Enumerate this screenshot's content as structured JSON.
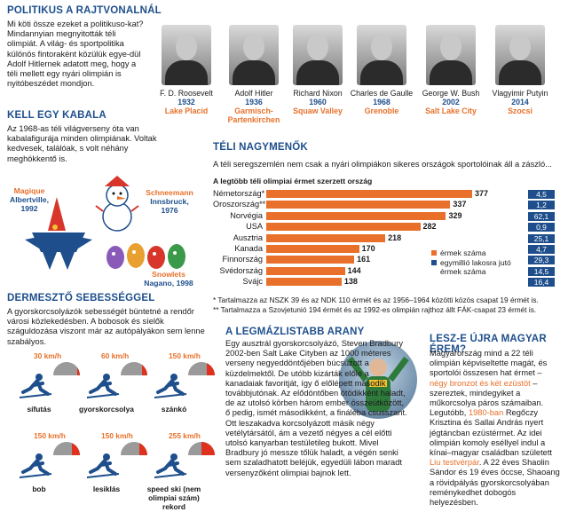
{
  "politics": {
    "title": "POLITIKUS A RAJTVONALNÁL",
    "text": "Mi köti össze ezeket a politikuso-kat? Mindannyian megnyitották téli olimpiát. A világ- és sportpolitika különös fintoraként közülük egye-dül Adolf Hitlernek adatott meg, hogy a téli mellett egy nyári olimpián is nyitóbeszédet mondjon.",
    "leaders": [
      {
        "name": "F. D. Roosevelt",
        "year": "1932",
        "city": "Lake Placid"
      },
      {
        "name": "Adolf Hitler",
        "year": "1936",
        "city": "Garmisch-Partenkirchen"
      },
      {
        "name": "Richard Nixon",
        "year": "1960",
        "city": "Squaw Valley"
      },
      {
        "name": "Charles de Gaulle",
        "year": "1968",
        "city": "Grenoble"
      },
      {
        "name": "George W. Bush",
        "year": "2002",
        "city": "Salt Lake City"
      },
      {
        "name": "Vlagyimir Putyin",
        "year": "2014",
        "city": "Szocsi"
      }
    ]
  },
  "mascot": {
    "title": "KELL EGY KABALA",
    "text": "Az 1968-as téli világverseny óta van kabalafigurája minden olimpiának. Voltak kedvesek, találóak, s volt néhány meghökkentő is.",
    "items": [
      {
        "name": "Magique",
        "city": "Albertville,",
        "year": "1992"
      },
      {
        "name": "Schneemann",
        "city": "Innsbruck,",
        "year": "1976"
      },
      {
        "name": "Snowlets",
        "city": "Nagano, 1998",
        "year": ""
      }
    ]
  },
  "winter": {
    "title": "TÉLI NAGYMENŐK",
    "intro": "A téli seregszemlén nem csak a nyári olimpiákon sikeres országok sportolóinak áll a zászló...",
    "chart_title": "A legtöbb téli olimpiai érmet szerzett ország",
    "legend_medals": "érmek száma",
    "legend_pop": "egymillió lakosra jutó érmek száma",
    "note1": "* Tartalmazza az NSZK 39 és az NDK 110 érmét és az 1956–1964 közötti közös csapat 19 érmét is.",
    "note2": "** Tartalmazza a Szovjetunió 194 érmét és az 1992-es olimpián rajthoz állt FÁK-csapat 23 érmét is."
  },
  "chart_data": {
    "type": "bar",
    "title": "A legtöbb téli olimpiai érmet szerzett ország",
    "categories": [
      "Németország*",
      "Oroszország**",
      "Norvégia",
      "USA",
      "Ausztria",
      "Kanada",
      "Finnország",
      "Svédország",
      "Svájc"
    ],
    "series": [
      {
        "name": "érmek száma",
        "values": [
          377,
          337,
          329,
          282,
          218,
          170,
          161,
          144,
          138
        ]
      },
      {
        "name": "egymillió lakosra jutó érmek száma",
        "values": [
          "4,5",
          "1,2",
          "62,1",
          "0,9",
          "25,1",
          "4,7",
          "29,3",
          "14,5",
          "16,4"
        ]
      }
    ]
  },
  "speed": {
    "title": "DERMESZTŐ SEBESSÉGGEL",
    "text": "A gyorskorcsolyázók sebességét büntetné a rendőr városi közlekedésben. A bobosok és síelők száguldozása viszont már az autópályákon sem lenne szabályos.",
    "items": [
      {
        "speed": "30 km/h",
        "name": "sífutás"
      },
      {
        "speed": "60 km/h",
        "name": "gyorskorcsolya"
      },
      {
        "speed": "150 km/h",
        "name": "szánkó"
      },
      {
        "speed": "150 km/h",
        "name": "bob"
      },
      {
        "speed": "150 km/h",
        "name": "lesiklás"
      },
      {
        "speed": "255 km/h",
        "name": "speed ski (nem olimpiai szám) rekord"
      }
    ]
  },
  "gold": {
    "title": "A LEGMÁZLISTABB ARANY",
    "text": "Egy ausztrál gyorskorcsolyázó, Steven Bradbury 2002-ben Salt Lake Cityben az 1000 méteres verseny negyeddöntőjében búcsúzott a küzdelmektől. De utóbb kizárták előle a kanadaiak favoritját, így ő előlépett második továbbjutónak. Az elődöntőben ötödikként haladt, de az utolsó körben három ember összeütközött, ő pedig, ismét másodikként, a fináléba csusszant. Ott leszakadva korcsolyázott másik négy vetélytársától, ám a vezető négyes a cél előtti utolsó kanyarban testületileg bukott. Mivel Bradbury jó messze tőlük haladt, a végén senki sem szaladhatott beléjük, egyedüli lábon maradt versenyzőként olimpiai bajnok lett."
  },
  "hungary": {
    "title": "LESZ-E ÚJRA MAGYAR ÉREM?",
    "text_a": "Magyarország mind a 22 téli olimpián képviseltette magát, és sportolói összesen hat érmet –",
    "text_b": "négy bronzot és két ezüstöt",
    "text_c": "– szereztek, mindegyiket a műkorcsolya páros számaiban. Legutóbb,",
    "text_d": "1980-ban",
    "text_e": "Regőczy Krisztina és Sallai András nyert jégtáncban ezüstérmet. Az idei olimpián komoly eséllyel indul a kínai–magyar családban született",
    "text_f": "Liu testvérpár",
    "text_g": ". A 22 éves Shaolin Sándor és 19 éves öccse, Shaoang a rövidpályás gyorskorcsolyában reménykedhet dobogós helyezésben."
  }
}
